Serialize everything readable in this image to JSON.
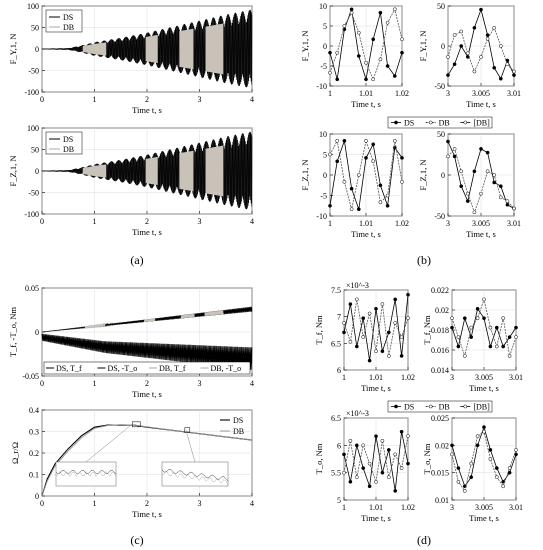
{
  "panel_labels": [
    "(a)",
    "(b)",
    "(c)",
    "(d)"
  ],
  "xlabel": "Time t, s",
  "chart_data": [
    {
      "id": "a1",
      "type": "line",
      "ylabel": "F_Y,1, N",
      "xlim": [
        0,
        4
      ],
      "ylim": [
        -100,
        100
      ],
      "xticks": [
        "0",
        "1",
        "2",
        "3",
        "4"
      ],
      "yticks": [
        "100",
        "50",
        "0",
        "-50",
        "-100"
      ],
      "legend": [
        "DS",
        "DB"
      ],
      "envelope": {
        "t": [
          0,
          0.5,
          0.75,
          1.0,
          1.5,
          2.0,
          2.5,
          3.0,
          3.5,
          4.0
        ],
        "amp": [
          1,
          2,
          8,
          16,
          26,
          38,
          52,
          66,
          80,
          92
        ]
      }
    },
    {
      "id": "a2",
      "type": "line",
      "ylabel": "F_Z,1, N",
      "xlim": [
        0,
        4
      ],
      "ylim": [
        -100,
        100
      ],
      "xticks": [
        "0",
        "1",
        "2",
        "3",
        "4"
      ],
      "yticks": [
        "100",
        "50",
        "0",
        "-50",
        "-100"
      ],
      "legend": [
        "DS",
        "DB"
      ],
      "envelope": {
        "t": [
          0,
          0.5,
          0.75,
          1.0,
          1.5,
          2.0,
          2.5,
          3.0,
          3.5,
          4.0
        ],
        "amp": [
          1,
          2,
          8,
          16,
          26,
          38,
          52,
          66,
          80,
          92
        ]
      }
    },
    {
      "id": "b1",
      "type": "line",
      "ylabel": "F_Y,1, N",
      "xlim": [
        1,
        1.02
      ],
      "ylim": [
        -12,
        12
      ],
      "xticks": [
        "1",
        "1.01",
        "1.02"
      ],
      "yticks": [
        "10",
        "5",
        "0",
        "-5",
        "-10"
      ],
      "series": [
        {
          "name": "DS",
          "x": [
            1.0,
            1.002,
            1.004,
            1.006,
            1.008,
            1.01,
            1.012,
            1.014,
            1.016,
            1.018,
            1.02
          ],
          "y": [
            -2,
            -10,
            5,
            11,
            -3,
            -10,
            2,
            10,
            -6,
            -9,
            -2
          ]
        },
        {
          "name": "DB",
          "x": [
            1.0,
            1.002,
            1.004,
            1.006,
            1.008,
            1.01,
            1.012,
            1.014,
            1.016,
            1.018,
            1.02
          ],
          "y": [
            -8,
            -2,
            6,
            10,
            4,
            -5,
            -10,
            -4,
            7,
            11,
            2
          ]
        }
      ]
    },
    {
      "id": "b2",
      "type": "line",
      "ylabel": "F_Y,1, N",
      "xlim": [
        3,
        3.01
      ],
      "ylim": [
        -50,
        60
      ],
      "xticks": [
        "3",
        "3.005",
        "3.01"
      ],
      "yticks": [
        "50",
        "0",
        "-50"
      ],
      "series": [
        {
          "name": "DS",
          "x": [
            3.0,
            3.001,
            3.002,
            3.003,
            3.004,
            3.005,
            3.006,
            3.007,
            3.008,
            3.009,
            3.01
          ],
          "y": [
            -35,
            -20,
            5,
            -10,
            30,
            55,
            20,
            -25,
            -40,
            -15,
            -35
          ]
        },
        {
          "name": "DB",
          "x": [
            3.0,
            3.001,
            3.002,
            3.003,
            3.004,
            3.005,
            3.006,
            3.007,
            3.008,
            3.009,
            3.01
          ],
          "y": [
            -10,
            20,
            25,
            -5,
            -30,
            -10,
            15,
            30,
            5,
            -20,
            -30
          ]
        }
      ]
    },
    {
      "id": "b3",
      "type": "line",
      "ylabel": "F_Z,1, N",
      "xlim": [
        1,
        1.02
      ],
      "ylim": [
        -12,
        12
      ],
      "xticks": [
        "1",
        "1.01",
        "1.02"
      ],
      "yticks": [
        "10",
        "5",
        "0",
        "-5",
        "-10"
      ],
      "series": [
        {
          "name": "DS",
          "x": [
            1.0,
            1.002,
            1.004,
            1.006,
            1.008,
            1.01,
            1.012,
            1.014,
            1.016,
            1.018,
            1.02
          ],
          "y": [
            -9,
            4,
            10,
            -4,
            -10,
            5,
            9,
            -3,
            -9,
            8,
            5
          ]
        },
        {
          "name": "DB",
          "x": [
            1.0,
            1.002,
            1.004,
            1.006,
            1.008,
            1.01,
            1.012,
            1.014,
            1.016,
            1.018,
            1.02
          ],
          "y": [
            6,
            10,
            -2,
            -10,
            0,
            10,
            4,
            -8,
            -6,
            10,
            -2
          ]
        }
      ]
    },
    {
      "id": "b4",
      "type": "line",
      "ylabel": "F_Z,1, N",
      "xlim": [
        3,
        3.01
      ],
      "ylim": [
        -50,
        60
      ],
      "xticks": [
        "3",
        "3.005",
        "3.01"
      ],
      "yticks": [
        "50",
        "0",
        "-50"
      ],
      "series": [
        {
          "name": "DS",
          "x": [
            3.0,
            3.001,
            3.002,
            3.003,
            3.004,
            3.005,
            3.006,
            3.007,
            3.008,
            3.009,
            3.01
          ],
          "y": [
            50,
            30,
            -10,
            -30,
            10,
            40,
            35,
            -5,
            -10,
            -35,
            -40
          ]
        },
        {
          "name": "DB",
          "x": [
            3.0,
            3.001,
            3.002,
            3.003,
            3.004,
            3.005,
            3.006,
            3.007,
            3.008,
            3.009,
            3.01
          ],
          "y": [
            30,
            40,
            10,
            -20,
            -45,
            -20,
            10,
            5,
            -25,
            -30,
            -40
          ]
        }
      ]
    },
    {
      "id": "c1",
      "type": "line",
      "ylabel": "T_f, -T_o, Nm",
      "xlim": [
        0,
        4
      ],
      "ylim": [
        -0.05,
        0.05
      ],
      "xticks": [
        "0",
        "1",
        "2",
        "3",
        "4"
      ],
      "yticks": [
        "0.05",
        "0",
        "-0.05"
      ],
      "legend": [
        "DS, T_f",
        "DS, -T_o",
        "DB, T_f",
        "DB, -T_o"
      ]
    },
    {
      "id": "c2",
      "type": "line",
      "ylabel": "Ω_r/Ω",
      "xlim": [
        0,
        4
      ],
      "ylim": [
        0,
        0.4
      ],
      "xticks": [
        "0",
        "1",
        "2",
        "3",
        "4"
      ],
      "yticks": [
        "0.4",
        "0.3",
        "0.2",
        "0.1",
        "0"
      ],
      "series": [
        {
          "name": "DS",
          "x": [
            0,
            0.1,
            0.25,
            0.5,
            0.75,
            1.0,
            1.25,
            1.5,
            1.75,
            2.0,
            2.5,
            3.0,
            3.5,
            4.0
          ],
          "y": [
            0,
            0.08,
            0.15,
            0.22,
            0.28,
            0.32,
            0.33,
            0.33,
            0.33,
            0.32,
            0.305,
            0.29,
            0.275,
            0.26
          ]
        },
        {
          "name": "DB",
          "x": [
            0,
            0.1,
            0.25,
            0.5,
            0.75,
            1.0,
            1.25,
            1.5,
            1.75,
            2.0,
            2.5,
            3.0,
            3.5,
            4.0
          ],
          "y": [
            0,
            0.07,
            0.14,
            0.21,
            0.27,
            0.315,
            0.328,
            0.332,
            0.33,
            0.322,
            0.305,
            0.29,
            0.275,
            0.26
          ]
        }
      ],
      "legend": [
        "DS",
        "DB"
      ]
    },
    {
      "id": "d1",
      "type": "line",
      "ylabel": "T_f, Nm",
      "exponent": "×10^-3",
      "xlim": [
        1,
        1.02
      ],
      "ylim": [
        0.0058,
        0.0075
      ],
      "xticks": [
        "1",
        "1.01",
        "1.02"
      ],
      "yticks": [
        "7.5",
        "7",
        "6.5",
        "6"
      ],
      "series": [
        {
          "name": "DS",
          "x": [
            1.0,
            1.002,
            1.004,
            1.006,
            1.008,
            1.01,
            1.012,
            1.014,
            1.016,
            1.018,
            1.02
          ],
          "y": [
            6.6,
            7.2,
            6.3,
            6.9,
            6.0,
            7.1,
            6.2,
            6.6,
            7.3,
            6.1,
            7.4
          ]
        },
        {
          "name": "DB",
          "x": [
            1.0,
            1.002,
            1.004,
            1.006,
            1.008,
            1.01,
            1.012,
            1.014,
            1.016,
            1.018,
            1.02
          ],
          "y": [
            6.8,
            6.4,
            7.3,
            6.5,
            7.0,
            6.2,
            7.2,
            6.1,
            6.8,
            6.5,
            6.9
          ]
        }
      ]
    },
    {
      "id": "d2",
      "type": "line",
      "ylabel": "T_f, Nm",
      "xlim": [
        3,
        3.01
      ],
      "ylim": [
        0.0135,
        0.022
      ],
      "xticks": [
        "3",
        "3.005",
        "3.01"
      ],
      "yticks": [
        "0.022",
        "0.02",
        "0.018",
        "0.016",
        "0.014"
      ],
      "series": [
        {
          "name": "DS",
          "x": [
            3.0,
            3.001,
            3.002,
            3.003,
            3.004,
            3.005,
            3.006,
            3.007,
            3.008,
            3.009,
            3.01
          ],
          "y": [
            0.018,
            0.016,
            0.019,
            0.017,
            0.02,
            0.019,
            0.016,
            0.018,
            0.016,
            0.017,
            0.018
          ]
        },
        {
          "name": "DB",
          "x": [
            3.0,
            3.001,
            3.002,
            3.003,
            3.004,
            3.005,
            3.006,
            3.007,
            3.008,
            3.009,
            3.01
          ],
          "y": [
            0.019,
            0.017,
            0.015,
            0.018,
            0.019,
            0.021,
            0.018,
            0.016,
            0.019,
            0.015,
            0.017
          ]
        }
      ]
    },
    {
      "id": "d3",
      "type": "line",
      "ylabel": "T_o, Nm",
      "exponent": "×10^-3",
      "xlim": [
        1,
        1.02
      ],
      "ylim": [
        0.0048,
        0.0066
      ],
      "xticks": [
        "1",
        "1.01",
        "1.02"
      ],
      "yticks": [
        "6.5",
        "6",
        "5.5",
        "5"
      ],
      "series": [
        {
          "name": "DS",
          "x": [
            1.0,
            1.002,
            1.004,
            1.006,
            1.008,
            1.01,
            1.012,
            1.014,
            1.016,
            1.018,
            1.02
          ],
          "y": [
            5.8,
            5.2,
            6.0,
            5.5,
            5.1,
            6.2,
            5.4,
            5.9,
            5.0,
            6.3,
            5.6
          ]
        },
        {
          "name": "DB",
          "x": [
            1.0,
            1.002,
            1.004,
            1.006,
            1.008,
            1.01,
            1.012,
            1.014,
            1.016,
            1.018,
            1.02
          ],
          "y": [
            5.4,
            6.1,
            5.3,
            6.0,
            5.6,
            5.2,
            6.1,
            5.3,
            5.8,
            5.5,
            6.2
          ]
        }
      ]
    },
    {
      "id": "d4",
      "type": "line",
      "ylabel": "T_o, Nm",
      "xlim": [
        3,
        3.01
      ],
      "ylim": [
        0.008,
        0.026
      ],
      "xticks": [
        "3",
        "3.005",
        "3.01"
      ],
      "yticks": [
        "0.025",
        "0.02",
        "0.015",
        "0.01"
      ],
      "series": [
        {
          "name": "DS",
          "x": [
            3.0,
            3.001,
            3.002,
            3.003,
            3.004,
            3.005,
            3.006,
            3.007,
            3.008,
            3.009,
            3.01
          ],
          "y": [
            0.02,
            0.015,
            0.011,
            0.013,
            0.02,
            0.024,
            0.019,
            0.015,
            0.012,
            0.014,
            0.018
          ]
        },
        {
          "name": "DB",
          "x": [
            3.0,
            3.001,
            3.002,
            3.003,
            3.004,
            3.005,
            3.006,
            3.007,
            3.008,
            3.009,
            3.01
          ],
          "y": [
            0.018,
            0.012,
            0.01,
            0.016,
            0.022,
            0.023,
            0.017,
            0.013,
            0.011,
            0.015,
            0.019
          ]
        }
      ]
    }
  ],
  "legend_b": [
    "DS",
    "DB",
    "[DB]"
  ],
  "legend_d": [
    "DS",
    "DB",
    "[DB]"
  ]
}
